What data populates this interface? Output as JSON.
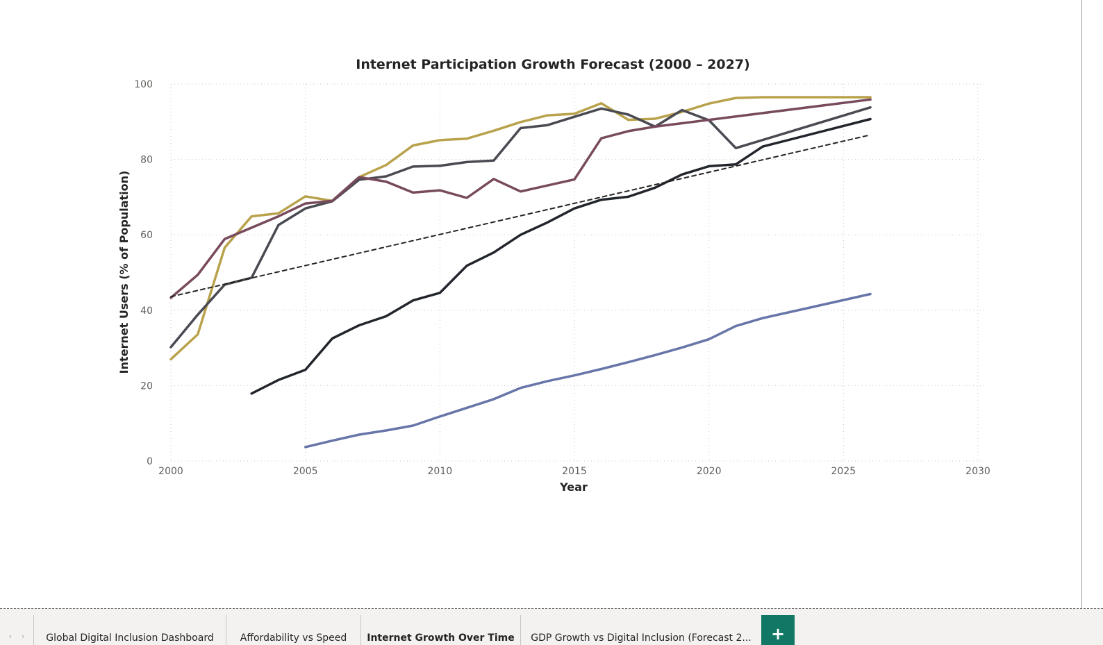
{
  "chart_data": {
    "type": "line",
    "title": "Internet Participation Growth Forecast (2000 – 2027)",
    "xlabel": "Year",
    "ylabel": "Internet Users (% of Population)",
    "xlim": [
      2000,
      2030
    ],
    "ylim": [
      0,
      100
    ],
    "x_ticks": [
      2000,
      2005,
      2010,
      2015,
      2020,
      2025,
      2030
    ],
    "y_ticks": [
      0,
      20,
      40,
      60,
      80,
      100
    ],
    "grid": true,
    "legend": "none",
    "series": [
      {
        "color": "#b9a24c",
        "style": "solid",
        "x": [
          2000,
          2001,
          2002,
          2003,
          2004,
          2005,
          2006,
          2007,
          2008,
          2009,
          2010,
          2011,
          2012,
          2013,
          2014,
          2015,
          2016,
          2017,
          2018,
          2019,
          2020,
          2021,
          2022,
          2026
        ],
        "y": [
          27,
          33.6,
          56.6,
          64.9,
          65.7,
          70.2,
          69,
          75.3,
          78.5,
          83.7,
          85.1,
          85.5,
          87.6,
          89.9,
          91.7,
          92.1,
          94.9,
          90.5,
          90.8,
          92.6,
          94.8,
          96.3,
          96.5,
          96.5
        ]
      },
      {
        "color": "#4a4a52",
        "style": "solid",
        "x": [
          2000,
          2001,
          2002,
          2003,
          2004,
          2005,
          2006,
          2007,
          2008,
          2009,
          2010,
          2011,
          2012,
          2013,
          2014,
          2015,
          2016,
          2017,
          2018,
          2019,
          2020,
          2021,
          2026
        ],
        "y": [
          30.2,
          38.8,
          46.8,
          48.6,
          62.6,
          67,
          68.9,
          74.6,
          75.5,
          78.1,
          78.3,
          79.3,
          79.7,
          88.3,
          89.1,
          91.3,
          93.5,
          91.9,
          88.7,
          93.1,
          90.4,
          83,
          93.8
        ]
      },
      {
        "color": "#774a5c",
        "style": "solid",
        "x": [
          2000,
          2001,
          2002,
          2004,
          2005,
          2006,
          2007,
          2008,
          2009,
          2010,
          2011,
          2012,
          2013,
          2015,
          2016,
          2017,
          2018,
          2026
        ],
        "y": [
          43.3,
          49.4,
          58.9,
          64.9,
          68.3,
          69,
          75.3,
          74.1,
          71.2,
          71.8,
          69.8,
          74.8,
          71.5,
          74.7,
          85.6,
          87.5,
          88.7,
          95.9
        ]
      },
      {
        "color": "#22252c",
        "style": "solid",
        "x": [
          2003,
          2004,
          2005,
          2006,
          2007,
          2008,
          2009,
          2010,
          2011,
          2012,
          2013,
          2014,
          2015,
          2016,
          2017,
          2018,
          2019,
          2020,
          2021,
          2022,
          2026
        ],
        "y": [
          17.9,
          21.5,
          24.2,
          32.5,
          36,
          38.4,
          42.6,
          44.6,
          51.8,
          55.3,
          60,
          63.3,
          67,
          69.3,
          70.1,
          72.5,
          76,
          78.2,
          78.7,
          83.4,
          90.7
        ]
      },
      {
        "color": "#6775a8",
        "style": "solid",
        "x": [
          2005,
          2006,
          2007,
          2008,
          2009,
          2010,
          2011,
          2012,
          2013,
          2014,
          2015,
          2016,
          2017,
          2018,
          2019,
          2020,
          2021,
          2022,
          2026
        ],
        "y": [
          3.7,
          5.4,
          7,
          8.1,
          9.4,
          11.8,
          14.1,
          16.4,
          19.4,
          21.2,
          22.7,
          24.4,
          26.2,
          28.1,
          30.1,
          32.3,
          35.8,
          37.9,
          44.3
        ]
      },
      {
        "color": "#252423",
        "style": "dashed",
        "x": [
          2000,
          2026
        ],
        "y": [
          43.6,
          86.5
        ]
      }
    ]
  },
  "tabs": [
    {
      "label": "Global Digital Inclusion Dashboard",
      "active": false
    },
    {
      "label": "Affordability vs Speed",
      "active": false
    },
    {
      "label": "Internet Growth Over Time",
      "active": true
    },
    {
      "label": "GDP Growth vs Digital Inclusion (Forecast 2...",
      "active": false
    }
  ],
  "icons": {
    "prev": "chevron-left-icon",
    "next": "chevron-right-icon",
    "add": "plus-icon"
  },
  "symbols": {
    "prev": "‹",
    "next": "›",
    "add": "+"
  },
  "colors": {
    "add_tab": "#117865",
    "tabbar": "#f3f2f1"
  }
}
